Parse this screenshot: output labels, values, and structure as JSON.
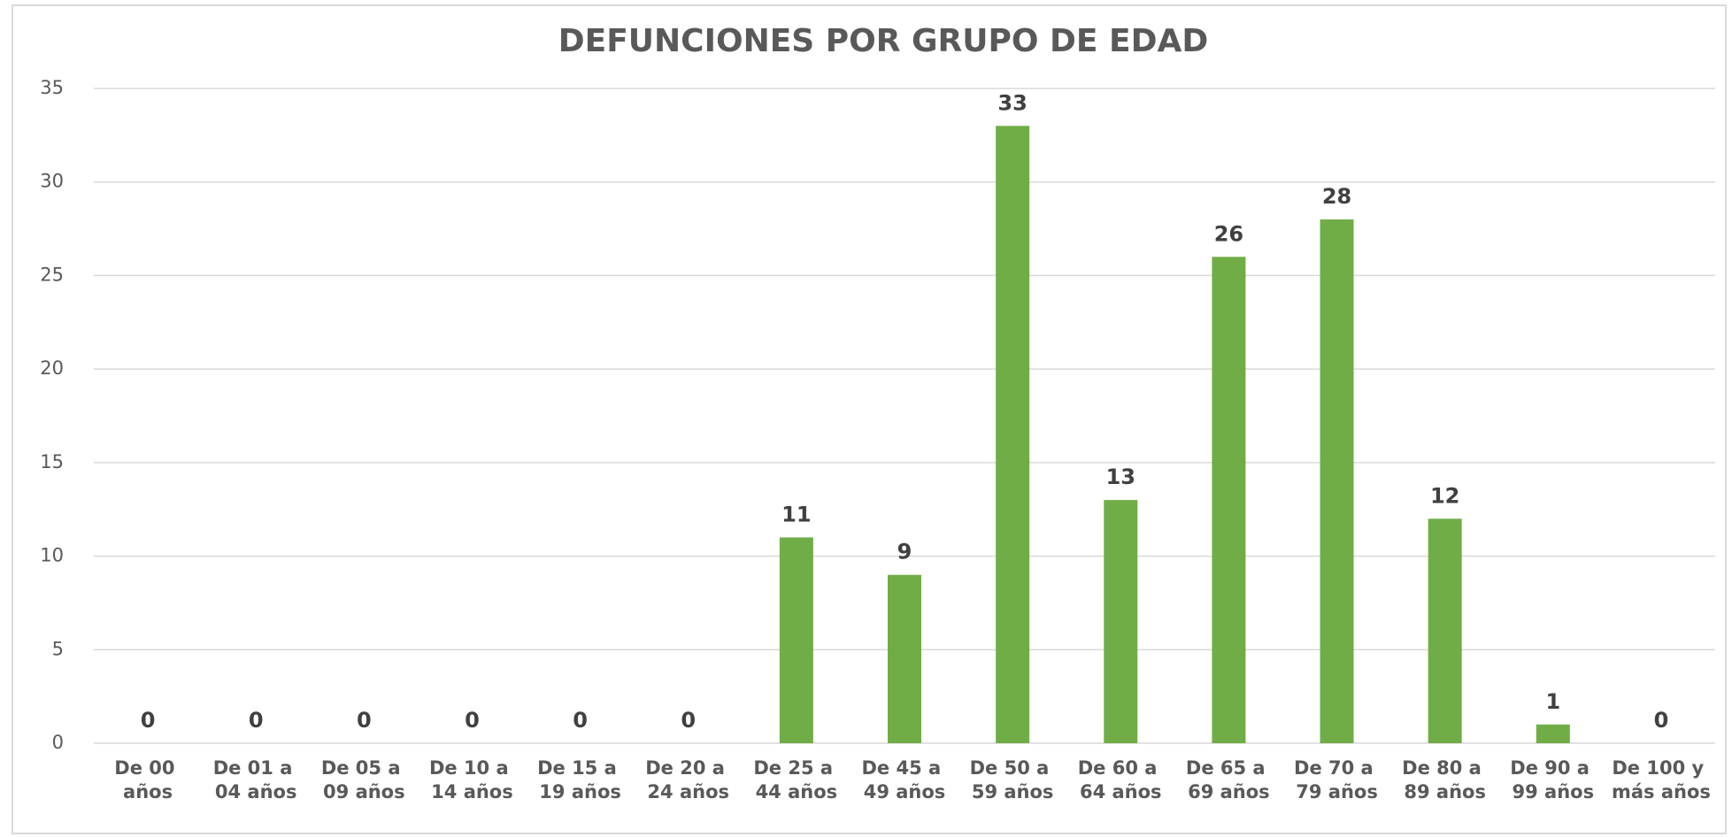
{
  "chart_data": {
    "type": "bar",
    "title": "DEFUNCIONES POR GRUPO DE EDAD",
    "categories": [
      "De 00 años",
      "De 01 a 04 años",
      "De 05 a 09 años",
      "De 10 a 14 años",
      "De 15 a 19 años",
      "De 20 a 24 años",
      "De 25 a 44 años",
      "De 45 a 49 años",
      "De 50 a 59 años",
      "De 60 a 64 años",
      "De 65 a 69 años",
      "De 70 a 79 años",
      "De 80 a 89 años",
      "De 90 a 99 años",
      "De 100 y más años"
    ],
    "values": [
      0,
      0,
      0,
      0,
      0,
      0,
      11,
      9,
      33,
      13,
      26,
      28,
      12,
      1,
      0
    ],
    "color": "#70ad47",
    "ylim": [
      0,
      35
    ],
    "yticks": [
      0,
      5,
      10,
      15,
      20,
      25,
      30,
      35
    ],
    "grid": true
  }
}
